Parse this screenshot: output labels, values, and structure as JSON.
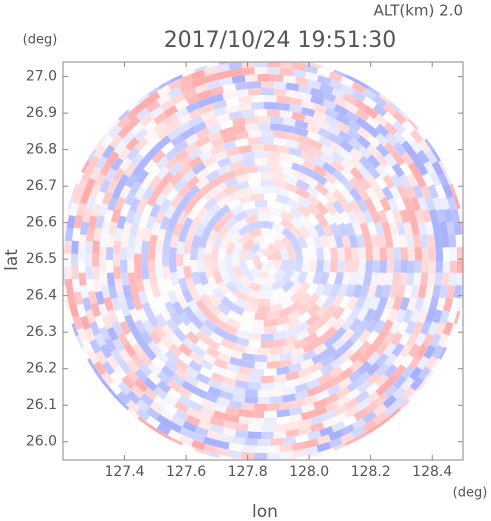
{
  "chart_data": {
    "type": "radar-ppi",
    "title": "2017/10/24 19:51:30",
    "annotation": "ALT(km) 2.0",
    "xlabel": "lon",
    "ylabel": "lat",
    "xunit": "(deg)",
    "yunit": "(deg)",
    "xlim": [
      127.2,
      128.5
    ],
    "ylim": [
      25.95,
      27.04
    ],
    "xticks": [
      127.4,
      127.6,
      127.8,
      {
        "value": 128.0,
        "label": "128.0"
      },
      128.2,
      128.4
    ],
    "yticks": [
      {
        "value": 26.0,
        "label": "26.0"
      },
      26.1,
      26.2,
      26.3,
      26.4,
      26.5,
      26.6,
      26.7,
      26.8,
      26.9,
      {
        "value": 27.0,
        "label": "27.0"
      }
    ]
  }
}
